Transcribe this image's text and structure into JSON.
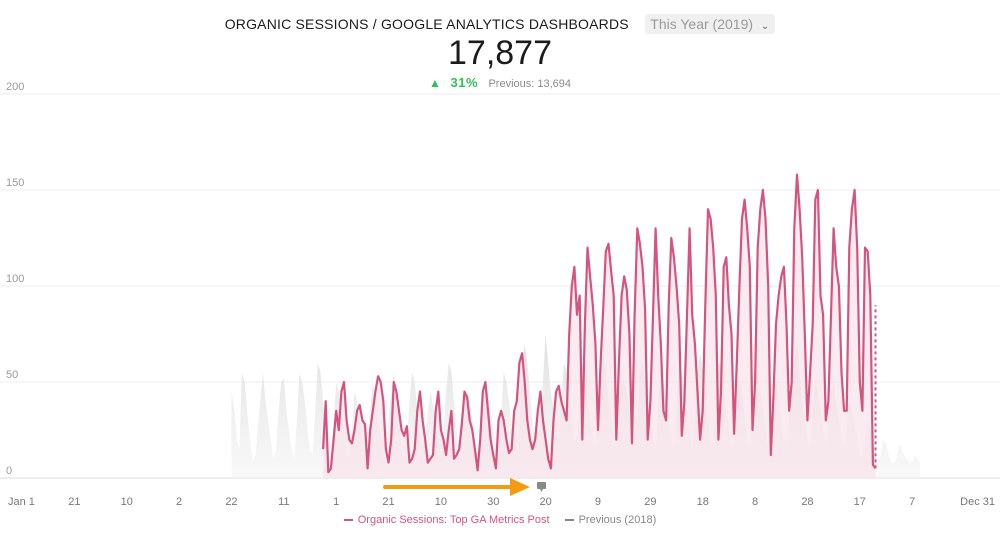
{
  "header": {
    "title": "ORGANIC SESSIONS / GOOGLE ANALYTICS DASHBOARDS",
    "period_selector": "This Year (2019)",
    "chevron_icon": "chevron-down-icon",
    "total": "17,877",
    "change_icon": "triangle-up-icon",
    "change_percent": "31%",
    "previous_label": "Previous: 13,694"
  },
  "colors": {
    "current": "#d4547f",
    "current_fill": "#f8e3ea",
    "previous_fill": "#e6e6e6",
    "delta_up": "#2fbf55",
    "arrow": "#f39c12",
    "grid": "#ececec",
    "axis_text": "#9a9a9a"
  },
  "annotation": {
    "arrow_icon": "orange-arrow-icon",
    "marker_icon": "annotation-flag-icon"
  },
  "legend": {
    "current": "Organic Sessions: Top GA Metrics Post",
    "previous": "Previous (2018)"
  },
  "chart_data": {
    "type": "line",
    "title": "ORGANIC SESSIONS / GOOGLE ANALYTICS DASHBOARDS",
    "y_ticks": [
      "0",
      "50",
      "100",
      "150",
      "200"
    ],
    "ylim": [
      0,
      200
    ],
    "x_tick_labels": [
      "Jan 1",
      "21",
      "10",
      "2",
      "22",
      "11",
      "1",
      "21",
      "10",
      "30",
      "20",
      "9",
      "29",
      "18",
      "8",
      "28",
      "17",
      "7",
      "Dec 31"
    ],
    "x_ticks_day_of_year": [
      1,
      21,
      41,
      61,
      81,
      101,
      121,
      141,
      161,
      181,
      201,
      221,
      241,
      261,
      281,
      301,
      321,
      341,
      365
    ],
    "grid": true,
    "legend_position": "bottom-center",
    "series": [
      {
        "name": "Organic Sessions: Top GA Metrics Post",
        "style": "line-with-fill",
        "dashed_tail_from_day": 338,
        "x_start_day": 116,
        "values": [
          15,
          40,
          3,
          5,
          20,
          35,
          25,
          45,
          50,
          30,
          20,
          18,
          25,
          35,
          38,
          30,
          28,
          5,
          25,
          35,
          45,
          53,
          50,
          40,
          15,
          8,
          20,
          50,
          45,
          35,
          25,
          22,
          27,
          8,
          10,
          15,
          35,
          45,
          30,
          20,
          8,
          10,
          12,
          35,
          45,
          25,
          20,
          12,
          25,
          35,
          10,
          12,
          15,
          28,
          45,
          42,
          30,
          25,
          15,
          4,
          20,
          45,
          50,
          35,
          20,
          12,
          5,
          30,
          35,
          30,
          20,
          13,
          15,
          35,
          40,
          60,
          65,
          50,
          30,
          20,
          15,
          20,
          35,
          45,
          30,
          20,
          10,
          5,
          30,
          45,
          48,
          40,
          35,
          30,
          75,
          100,
          110,
          85,
          95,
          20,
          80,
          120,
          105,
          90,
          70,
          25,
          60,
          88,
          118,
          122,
          108,
          95,
          20,
          60,
          95,
          105,
          98,
          75,
          18,
          85,
          130,
          122,
          110,
          88,
          20,
          40,
          85,
          130,
          95,
          70,
          35,
          30,
          90,
          125,
          115,
          100,
          80,
          22,
          40,
          85,
          130,
          85,
          70,
          45,
          20,
          35,
          90,
          140,
          135,
          120,
          95,
          20,
          45,
          110,
          115,
          90,
          75,
          23,
          60,
          100,
          135,
          145,
          130,
          110,
          25,
          50,
          120,
          140,
          150,
          135,
          100,
          12,
          42,
          80,
          95,
          105,
          110,
          80,
          35,
          50,
          130,
          158,
          140,
          115,
          75,
          30,
          55,
          80,
          145,
          150,
          95,
          85,
          30,
          40,
          85,
          130,
          110,
          100,
          55,
          35,
          35,
          120,
          140,
          150,
          120,
          50,
          35,
          120,
          118,
          95,
          7,
          5
        ],
        "tail_dashed_values": [
          5,
          90
        ]
      },
      {
        "name": "Previous (2018)",
        "style": "area",
        "x_start_day": 81,
        "values": [
          45,
          35,
          20,
          15,
          55,
          50,
          35,
          20,
          10,
          10,
          25,
          40,
          55,
          40,
          30,
          20,
          10,
          15,
          35,
          50,
          52,
          35,
          25,
          15,
          10,
          30,
          55,
          50,
          40,
          25,
          15,
          12,
          35,
          60,
          55,
          40,
          25,
          15,
          10,
          30,
          50,
          45,
          35,
          25,
          12,
          10,
          25,
          45,
          40,
          30,
          20,
          12,
          15,
          35,
          50,
          42,
          30,
          20,
          10,
          12,
          30,
          45,
          55,
          40,
          30,
          20,
          10,
          20,
          40,
          55,
          50,
          35,
          20,
          15,
          20,
          35,
          45,
          38,
          30,
          20,
          12,
          25,
          45,
          60,
          55,
          40,
          25,
          15,
          10,
          30,
          45,
          40,
          30,
          20,
          12,
          20,
          35,
          50,
          45,
          35,
          25,
          15,
          12,
          30,
          55,
          50,
          40,
          25,
          15,
          10,
          30,
          55,
          70,
          60,
          45,
          30,
          20,
          15,
          30,
          50,
          75,
          60,
          45,
          35,
          25,
          20,
          40,
          60,
          55,
          45,
          30,
          20,
          20,
          35,
          60,
          55,
          40,
          30,
          20,
          15,
          35,
          55,
          65,
          55,
          40,
          30,
          20,
          15,
          30,
          55,
          50,
          45,
          35,
          25,
          15,
          30,
          55,
          60,
          50,
          40,
          30,
          20,
          15,
          35,
          60,
          50,
          40,
          30,
          20,
          15,
          35,
          60,
          55,
          45,
          35,
          25,
          15,
          30,
          55,
          65,
          55,
          45,
          30,
          20,
          15,
          35,
          60,
          58,
          45,
          35,
          25,
          15,
          30,
          55,
          50,
          45,
          30,
          20,
          15,
          30,
          50,
          55,
          45,
          35,
          25,
          15,
          25,
          45,
          50,
          40,
          30,
          20,
          15,
          30,
          55,
          60,
          70,
          55,
          40,
          30,
          20,
          15,
          35,
          50,
          45,
          35,
          25,
          15,
          25,
          45,
          50,
          40,
          30,
          20,
          15,
          25,
          40,
          35,
          28,
          20,
          12,
          10,
          20,
          30,
          25,
          18,
          12,
          8,
          12,
          20,
          18,
          12,
          8,
          8,
          10,
          18,
          15,
          12,
          10,
          8,
          8,
          12,
          10,
          8
        ]
      }
    ]
  }
}
